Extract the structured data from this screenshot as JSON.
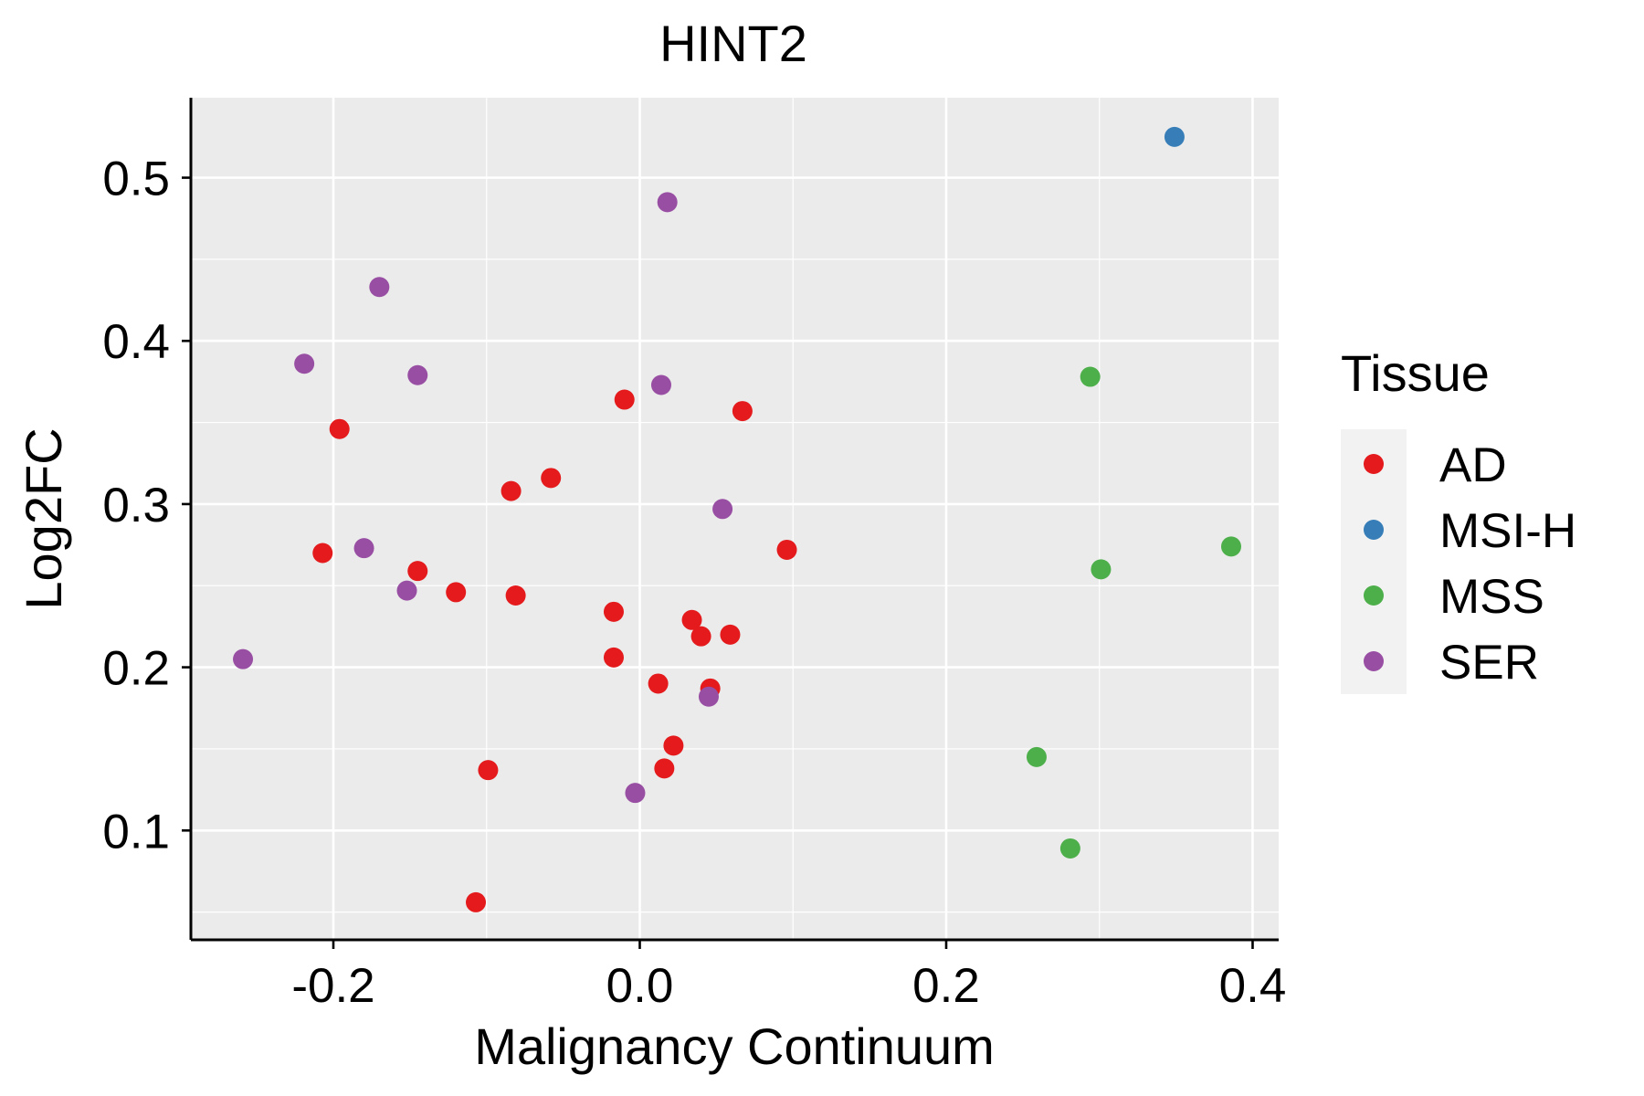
{
  "chart_data": {
    "type": "scatter",
    "title": "HINT2",
    "xlabel": "Malignancy Continuum",
    "ylabel": "Log2FC",
    "xlim": [
      -0.293,
      0.417
    ],
    "ylim": [
      0.033,
      0.549
    ],
    "x_ticks": [
      -0.2,
      0.0,
      0.2,
      0.4
    ],
    "x_tick_labels": [
      "-0.2",
      "0.0",
      "0.2",
      "0.4"
    ],
    "y_ticks": [
      0.1,
      0.2,
      0.3,
      0.4,
      0.5
    ],
    "y_tick_labels": [
      "0.1",
      "0.2",
      "0.3",
      "0.4",
      "0.5"
    ],
    "grid": true,
    "legend": {
      "title": "Tissue",
      "position": "right",
      "entries": [
        {
          "name": "AD",
          "color": "#E41A1C"
        },
        {
          "name": "MSI-H",
          "color": "#377EB8"
        },
        {
          "name": "MSS",
          "color": "#4DAF4A"
        },
        {
          "name": "SER",
          "color": "#984EA3"
        }
      ]
    },
    "series": [
      {
        "name": "AD",
        "color": "#E41A1C",
        "points": [
          [
            -0.196,
            0.346
          ],
          [
            -0.207,
            0.27
          ],
          [
            -0.145,
            0.259
          ],
          [
            -0.12,
            0.246
          ],
          [
            -0.084,
            0.308
          ],
          [
            -0.081,
            0.244
          ],
          [
            -0.058,
            0.316
          ],
          [
            -0.01,
            0.364
          ],
          [
            -0.017,
            0.234
          ],
          [
            -0.017,
            0.206
          ],
          [
            0.067,
            0.357
          ],
          [
            0.096,
            0.272
          ],
          [
            0.034,
            0.229
          ],
          [
            0.04,
            0.219
          ],
          [
            0.059,
            0.22
          ],
          [
            0.012,
            0.19
          ],
          [
            0.046,
            0.187
          ],
          [
            0.022,
            0.152
          ],
          [
            0.016,
            0.138
          ],
          [
            -0.099,
            0.137
          ],
          [
            -0.107,
            0.056
          ]
        ]
      },
      {
        "name": "MSI-H",
        "color": "#377EB8",
        "points": [
          [
            0.349,
            0.525
          ]
        ]
      },
      {
        "name": "MSS",
        "color": "#4DAF4A",
        "points": [
          [
            0.294,
            0.378
          ],
          [
            0.386,
            0.274
          ],
          [
            0.301,
            0.26
          ],
          [
            0.259,
            0.145
          ],
          [
            0.281,
            0.089
          ]
        ]
      },
      {
        "name": "SER",
        "color": "#984EA3",
        "points": [
          [
            0.018,
            0.485
          ],
          [
            -0.17,
            0.433
          ],
          [
            -0.219,
            0.386
          ],
          [
            -0.145,
            0.379
          ],
          [
            0.014,
            0.373
          ],
          [
            0.054,
            0.297
          ],
          [
            -0.18,
            0.273
          ],
          [
            -0.152,
            0.247
          ],
          [
            -0.259,
            0.205
          ],
          [
            0.045,
            0.182
          ],
          [
            -0.003,
            0.123
          ]
        ]
      }
    ]
  }
}
